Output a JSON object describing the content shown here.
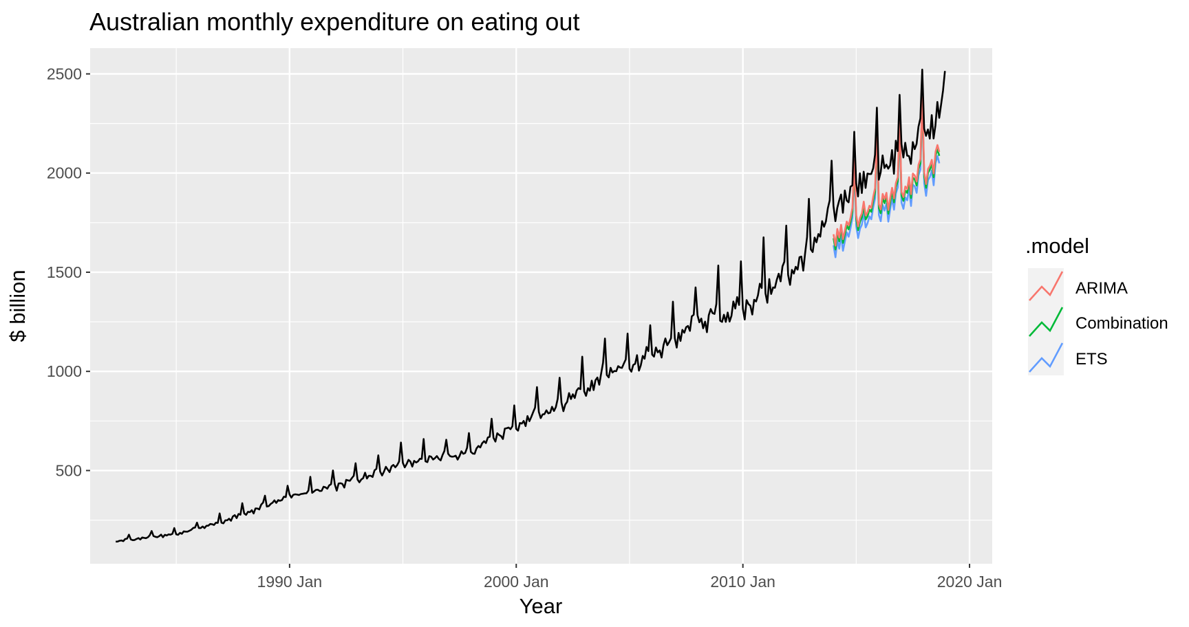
{
  "chart_data": {
    "type": "line",
    "title": "Australian monthly expenditure on eating out",
    "xlabel": "Year",
    "ylabel": "$ billion",
    "x_ticks": [
      "1990 Jan",
      "2000 Jan",
      "2010 Jan",
      "2020 Jan"
    ],
    "x_tick_years": [
      1990,
      2000,
      2010,
      2020
    ],
    "y_ticks": [
      500,
      1000,
      1500,
      2000,
      2500
    ],
    "xlim": [
      1981.2,
      2021.0
    ],
    "ylim": [
      30,
      2630
    ],
    "grid": true,
    "legend": {
      "title": ".model",
      "position": "right",
      "entries": [
        "ARIMA",
        "Combination",
        "ETS"
      ]
    },
    "colors": {
      "actual": "#000000",
      "ARIMA": "#F8766D",
      "Combination": "#00BA38",
      "ETS": "#619CFF",
      "panel": "#EBEBEB",
      "grid": "#FFFFFF"
    },
    "actual": {
      "x_start": 1982.33,
      "step_years": 0.0833333,
      "knots": [
        [
          1982.33,
          143
        ],
        [
          1985,
          180
        ],
        [
          1987,
          240
        ],
        [
          1990,
          370
        ],
        [
          1992,
          420
        ],
        [
          1995,
          540
        ],
        [
          1998,
          590
        ],
        [
          2000,
          730
        ],
        [
          2002,
          830
        ],
        [
          2004,
          1000
        ],
        [
          2006,
          1080
        ],
        [
          2008,
          1250
        ],
        [
          2010,
          1320
        ],
        [
          2012,
          1500
        ],
        [
          2013,
          1600
        ],
        [
          2014,
          1820
        ],
        [
          2015,
          1930
        ],
        [
          2016,
          2020
        ],
        [
          2017,
          2090
        ],
        [
          2018,
          2180
        ],
        [
          2018.9,
          2320
        ]
      ],
      "last_value": 2515
    },
    "forecast": {
      "x_start": 2014.0,
      "x_end": 2018.67,
      "series": [
        {
          "name": "ARIMA",
          "offset": 0,
          "amplitude": 1.0
        },
        {
          "name": "Combination",
          "offset": -20,
          "amplitude": 1.0
        },
        {
          "name": "ETS",
          "offset": -55,
          "amplitude": 1.1
        }
      ]
    }
  }
}
